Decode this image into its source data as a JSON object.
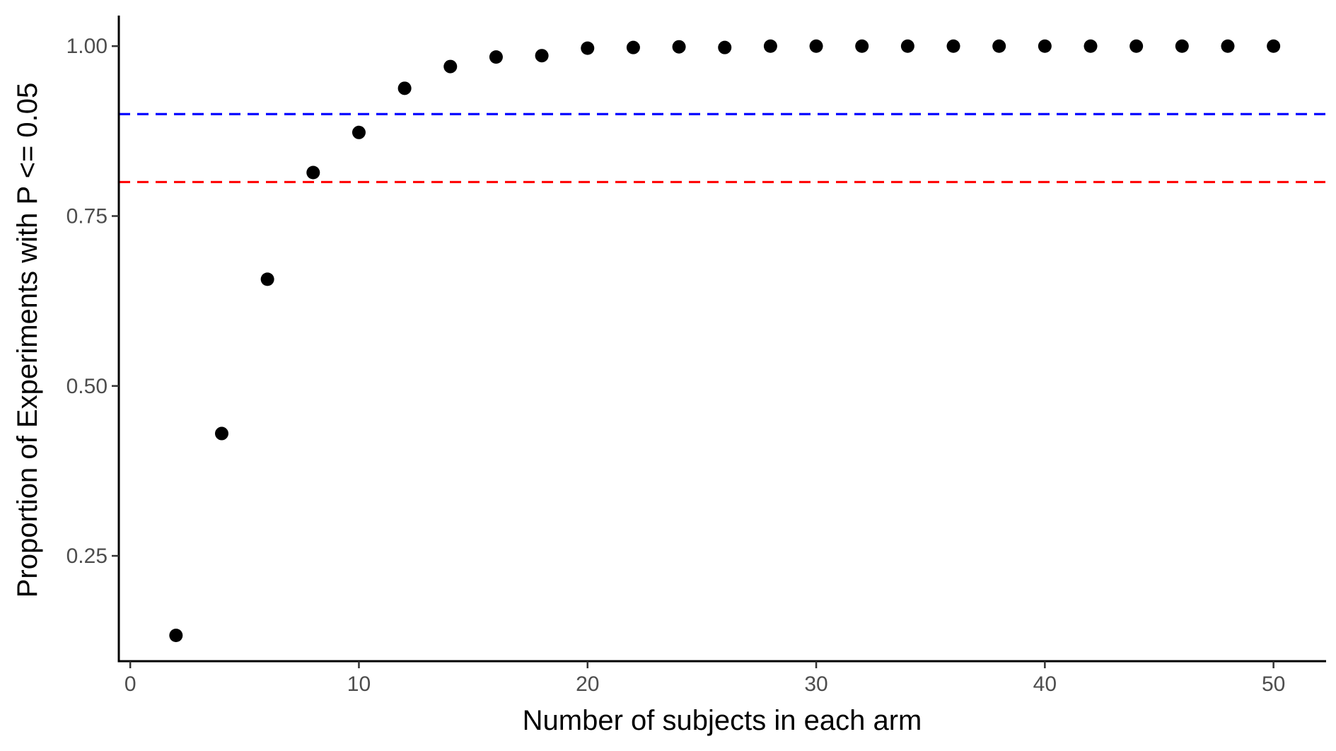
{
  "chart_data": {
    "type": "scatter",
    "title": "",
    "xlabel": "Number of subjects in each arm",
    "ylabel": "Proportion of Experiments with P <= 0.05",
    "xlim": [
      -0.5,
      52.3
    ],
    "ylim": [
      0.095,
      1.045
    ],
    "xticks": [
      0,
      10,
      20,
      30,
      40,
      50
    ],
    "xtick_labels": [
      "0",
      "10",
      "20",
      "30",
      "40",
      "50"
    ],
    "yticks": [
      0.25,
      0.5,
      0.75,
      1.0
    ],
    "ytick_labels": [
      "0.25",
      "0.50",
      "0.75",
      "1.00"
    ],
    "grid": false,
    "legend": "none",
    "point_color": "#000000",
    "series": [
      {
        "x": [
          2,
          4,
          6,
          8,
          10,
          12,
          14,
          16,
          18,
          20,
          22,
          24,
          26,
          28,
          30,
          32,
          34,
          36,
          38,
          40,
          42,
          44,
          46,
          48,
          50
        ],
        "y": [
          0.133,
          0.43,
          0.657,
          0.814,
          0.873,
          0.938,
          0.97,
          0.984,
          0.986,
          0.997,
          0.998,
          0.999,
          0.998,
          1.0,
          1.0,
          1.0,
          1.0,
          1.0,
          1.0,
          1.0,
          1.0,
          1.0,
          1.0,
          1.0,
          1.0
        ]
      }
    ],
    "reference_lines": [
      {
        "axis": "y",
        "value": 0.9,
        "color": "#0000ff",
        "style": "dashed"
      },
      {
        "axis": "y",
        "value": 0.8,
        "color": "#ff0000",
        "style": "dashed"
      }
    ]
  }
}
